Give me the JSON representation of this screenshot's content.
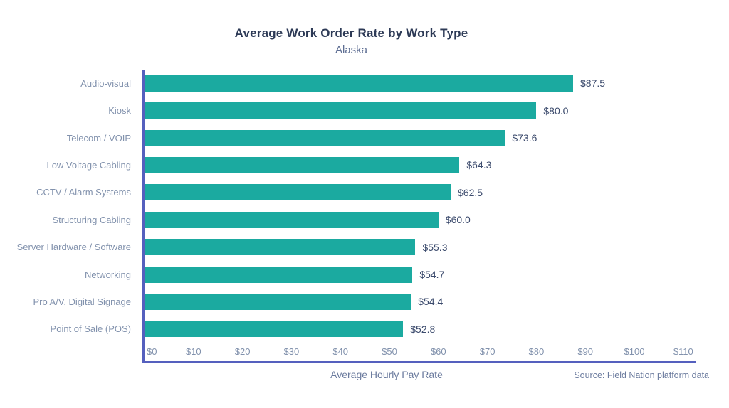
{
  "header": {
    "title": "Average Work Order Rate by Work Type",
    "subtitle": "Alaska"
  },
  "chart_data": {
    "type": "bar",
    "orientation": "horizontal",
    "title": "Average Work Order Rate by Work Type",
    "subtitle": "Alaska",
    "categories": [
      "Audio-visual",
      "Kiosk",
      "Telecom / VOIP",
      "Low Voltage Cabling",
      "CCTV / Alarm Systems",
      "Structuring Cabling",
      "Server Hardware / Software",
      "Networking",
      "Pro A/V, Digital Signage",
      "Point of Sale (POS)"
    ],
    "values": [
      87.5,
      80.0,
      73.6,
      64.3,
      62.5,
      60.0,
      55.3,
      54.7,
      54.4,
      52.8
    ],
    "value_labels": [
      "$87.5",
      "$80.0",
      "$73.6",
      "$64.3",
      "$62.5",
      "$60.0",
      "$55.3",
      "$54.7",
      "$54.4",
      "$52.8"
    ],
    "x_ticks": [
      "$0",
      "$10",
      "$20",
      "$30",
      "$40",
      "$50",
      "$60",
      "$70",
      "$80",
      "$90",
      "$100",
      "$110"
    ],
    "x_tick_values": [
      0,
      10,
      20,
      30,
      40,
      50,
      60,
      70,
      80,
      90,
      100,
      110
    ],
    "xlim": [
      0,
      112.5
    ],
    "xlabel": "Average Hourly Pay Rate",
    "ylabel": "",
    "grid": false,
    "legend_position": "none",
    "source": "Source: Field Nation platform data",
    "colors": {
      "bar": "#1BAAA0",
      "axis": "#5560BE",
      "title": "#2D3A56",
      "subtitle": "#5E6E93",
      "category_label": "#8292AD",
      "tick_label": "#8292AD",
      "value_label": "#3C4B6D",
      "footnote": "#6B7B9E",
      "background": "#FFFFFF"
    }
  }
}
